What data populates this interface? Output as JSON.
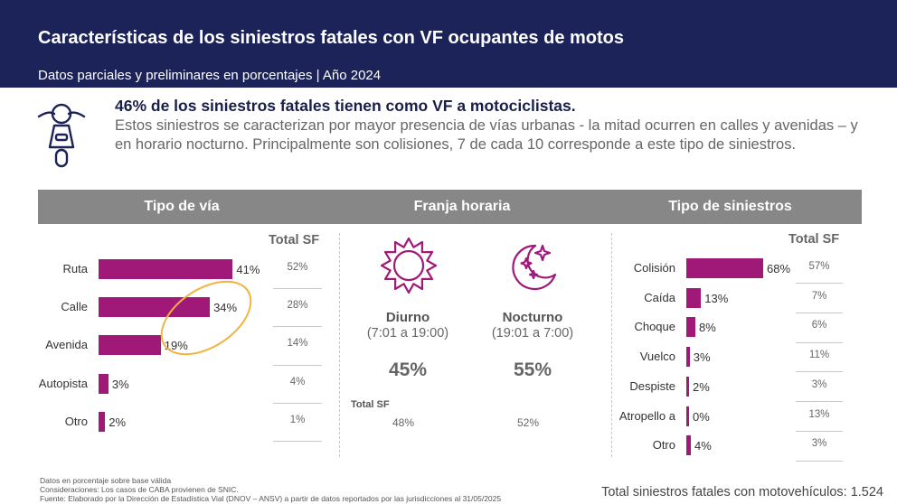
{
  "header": {
    "title": "Características de los siniestros fatales con VF ocupantes de motos",
    "subtitle": "Datos parciales y preliminares en porcentajes | Año 2024"
  },
  "summary": {
    "headline": "46% de los siniestros fatales tienen como VF a motociclistas.",
    "body": "Estos siniestros se caracterizan por mayor presencia de vías urbanas - la mitad ocurren en calles y avenidas – y en horario nocturno. Principalmente son colisiones, 7 de cada 10 corresponde a este tipo de siniestros."
  },
  "colors": {
    "header": "#1c2358",
    "bar": "#a01878",
    "band": "#878787",
    "highlight": "#f2b33d"
  },
  "icons": {
    "summary": "motorcycle-icon",
    "day": "sun-icon",
    "night": "moon-stars-icon"
  },
  "sections": {
    "tipo_via": "Tipo de vía",
    "franja": "Franja horaria",
    "tipo_siniestros": "Tipo de siniestros"
  },
  "total_sf_label": "Total SF",
  "chart_data": [
    {
      "type": "bar",
      "orientation": "horizontal",
      "title": "Tipo de vía",
      "categories": [
        "Ruta",
        "Calle",
        "Avenida",
        "Autopista",
        "Otro"
      ],
      "values": [
        41,
        34,
        19,
        3,
        2
      ],
      "labels": [
        "41%",
        "34%",
        "19%",
        "3%",
        "2%"
      ],
      "total_sf_header": "Total SF",
      "total_sf": [
        "52%",
        "28%",
        "14%",
        "4%",
        "1%"
      ]
    },
    {
      "type": "table",
      "title": "Franja horaria",
      "items": [
        {
          "name": "Diurno",
          "range": "(7:01 a 19:00)",
          "value": "45%",
          "total_sf": "48%"
        },
        {
          "name": "Nocturno",
          "range": "(19:01 a 7:00)",
          "value": "55%",
          "total_sf": "52%"
        }
      ],
      "total_sf_header": "Total SF"
    },
    {
      "type": "bar",
      "orientation": "horizontal",
      "title": "Tipo de siniestros",
      "categories": [
        "Colisión",
        "Caída",
        "Choque",
        "Vuelco",
        "Despiste",
        "Atropello a",
        "Otro"
      ],
      "values": [
        68,
        13,
        8,
        3,
        2,
        0,
        4
      ],
      "labels": [
        "68%",
        "13%",
        "8%",
        "3%",
        "2%",
        "0%",
        "4%"
      ],
      "total_sf_header": "Total SF",
      "total_sf": [
        "57%",
        "7%",
        "6%",
        "11%",
        "3%",
        "13%",
        "3%"
      ]
    }
  ],
  "footer": {
    "note1": "Datos en porcentaje sobre base válida",
    "note2": "Consideraciones: Los casos de CABA provienen de SNIC.",
    "note3": "Fuente: Elaborado por la Dirección de Estadística Vial (DNOV – ANSV) a partir de datos reportados por las jurisdicciones al 31/05/2025",
    "total": "Total siniestros fatales con motovehículos: 1.524"
  }
}
